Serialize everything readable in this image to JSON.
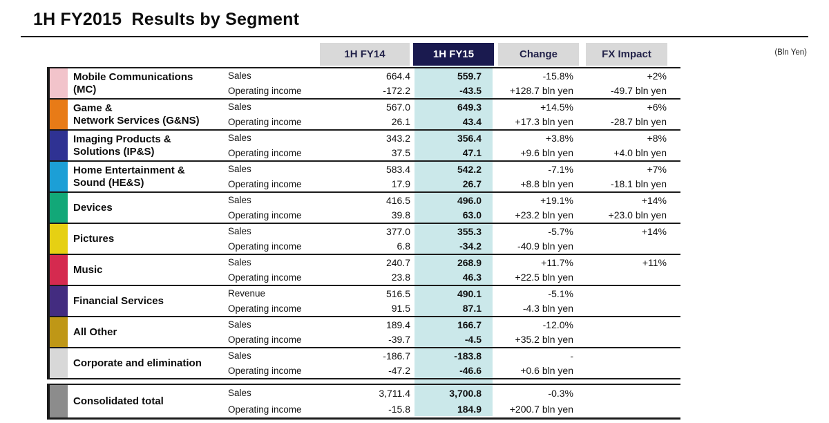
{
  "title": "1H FY2015  Results by Segment",
  "unit_note": "(Bln Yen)",
  "columns": {
    "fy14": "1H FY14",
    "fy15": "1H FY15",
    "change": "Change",
    "fx": "FX Impact"
  },
  "colors": {
    "fy15_header_bg": "#1a1a4f",
    "fy15_column_bg": "#cbe8ea",
    "header_chip_bg": "#d9d9d9"
  },
  "segments": [
    {
      "name": "Mobile Communications\n(MC)",
      "color": "#f2c4cb",
      "rows": [
        {
          "label": "Sales",
          "fy14": "664.4",
          "fy15": "559.7",
          "change": "-15.8%",
          "fx": "+2%"
        },
        {
          "label": "Operating income",
          "fy14": "-172.2",
          "fy15": "-43.5",
          "change": "+128.7 bln yen",
          "fx": "-49.7 bln yen"
        }
      ]
    },
    {
      "name": "Game &\nNetwork Services (G&NS)",
      "color": "#e87b17",
      "rows": [
        {
          "label": "Sales",
          "fy14": "567.0",
          "fy15": "649.3",
          "change": "+14.5%",
          "fx": "+6%"
        },
        {
          "label": "Operating income",
          "fy14": "26.1",
          "fy15": "43.4",
          "change": "+17.3 bln yen",
          "fx": "-28.7 bln yen"
        }
      ]
    },
    {
      "name": "Imaging Products &\nSolutions (IP&S)",
      "color": "#2f3293",
      "rows": [
        {
          "label": "Sales",
          "fy14": "343.2",
          "fy15": "356.4",
          "change": "+3.8%",
          "fx": "+8%"
        },
        {
          "label": "Operating income",
          "fy14": "37.5",
          "fy15": "47.1",
          "change": "+9.6 bln yen",
          "fx": "+4.0 bln yen"
        }
      ]
    },
    {
      "name": "Home Entertainment &\nSound (HE&S)",
      "color": "#1c9fd6",
      "rows": [
        {
          "label": "Sales",
          "fy14": "583.4",
          "fy15": "542.2",
          "change": "-7.1%",
          "fx": "+7%"
        },
        {
          "label": "Operating income",
          "fy14": "17.9",
          "fy15": "26.7",
          "change": "+8.8 bln yen",
          "fx": "-18.1 bln yen"
        }
      ]
    },
    {
      "name": "Devices",
      "color": "#12a878",
      "rows": [
        {
          "label": "Sales",
          "fy14": "416.5",
          "fy15": "496.0",
          "change": "+19.1%",
          "fx": "+14%"
        },
        {
          "label": "Operating income",
          "fy14": "39.8",
          "fy15": "63.0",
          "change": "+23.2 bln yen",
          "fx": "+23.0 bln yen"
        }
      ]
    },
    {
      "name": "Pictures",
      "color": "#e6d013",
      "rows": [
        {
          "label": "Sales",
          "fy14": "377.0",
          "fy15": "355.3",
          "change": "-5.7%",
          "fx": "+14%"
        },
        {
          "label": "Operating income",
          "fy14": "6.8",
          "fy15": "-34.2",
          "change": "-40.9 bln yen",
          "fx": ""
        }
      ]
    },
    {
      "name": "Music",
      "color": "#d52a4f",
      "rows": [
        {
          "label": "Sales",
          "fy14": "240.7",
          "fy15": "268.9",
          "change": "+11.7%",
          "fx": "+11%"
        },
        {
          "label": "Operating income",
          "fy14": "23.8",
          "fy15": "46.3",
          "change": "+22.5 bln yen",
          "fx": ""
        }
      ]
    },
    {
      "name": "Financial Services",
      "color": "#432c80",
      "rows": [
        {
          "label": "Revenue",
          "fy14": "516.5",
          "fy15": "490.1",
          "change": "-5.1%",
          "fx": ""
        },
        {
          "label": "Operating income",
          "fy14": "91.5",
          "fy15": "87.1",
          "change": "-4.3 bln yen",
          "fx": ""
        }
      ]
    },
    {
      "name": "All Other",
      "color": "#bf9716",
      "rows": [
        {
          "label": "Sales",
          "fy14": "189.4",
          "fy15": "166.7",
          "change": "-12.0%",
          "fx": ""
        },
        {
          "label": "Operating income",
          "fy14": "-39.7",
          "fy15": "-4.5",
          "change": "+35.2 bln yen",
          "fx": ""
        }
      ]
    },
    {
      "name": "Corporate and elimination",
      "color": "#d8d8d8",
      "rows": [
        {
          "label": "Sales",
          "fy14": "-186.7",
          "fy15": "-183.8",
          "change": "-",
          "fx": ""
        },
        {
          "label": "Operating income",
          "fy14": "-47.2",
          "fy15": "-46.6",
          "change": "+0.6 bln yen",
          "fx": ""
        }
      ]
    }
  ],
  "total": {
    "name": "Consolidated total",
    "color": "#8c8c8c",
    "rows": [
      {
        "label": "Sales",
        "fy14": "3,711.4",
        "fy15": "3,700.8",
        "change": "-0.3%",
        "fx": ""
      },
      {
        "label": "Operating income",
        "fy14": "-15.8",
        "fy15": "184.9",
        "change": "+200.7 bln yen",
        "fx": ""
      }
    ]
  }
}
